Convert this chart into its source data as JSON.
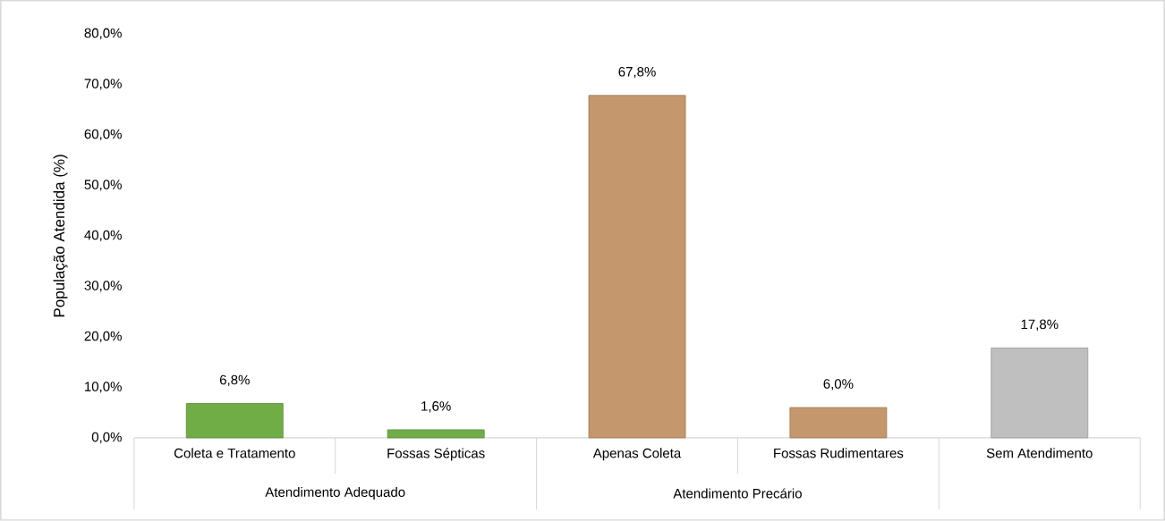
{
  "chart_data": {
    "type": "bar",
    "ylabel": "População Atendida (%)",
    "categories": [
      "Coleta e Tratamento",
      "Fossas Sépticas",
      "Apenas Coleta",
      "Fossas Rudimentares",
      "Sem Atendimento"
    ],
    "values": [
      6.8,
      1.6,
      67.8,
      6.0,
      17.8
    ],
    "colors": [
      "#70ad47",
      "#70ad47",
      "#c4976c",
      "#c4976c",
      "#bfbfbf"
    ],
    "value_labels": [
      "6,8%",
      "1,6%",
      "67,8%",
      "6,0%",
      "17,8%"
    ],
    "ylim": [
      0,
      80
    ],
    "yticks": [
      {
        "value": 0,
        "label": "0,0%"
      },
      {
        "value": 10,
        "label": "10,0%"
      },
      {
        "value": 20,
        "label": "20,0%"
      },
      {
        "value": 30,
        "label": "30,0%"
      },
      {
        "value": 40,
        "label": "40,0%"
      },
      {
        "value": 50,
        "label": "50,0%"
      },
      {
        "value": 60,
        "label": "60,0%"
      },
      {
        "value": 70,
        "label": "70,0%"
      },
      {
        "value": 80,
        "label": "80,0%"
      }
    ],
    "grid": false,
    "annotations": [
      "Atendimento Adequado",
      "Atendimento Precário"
    ]
  }
}
